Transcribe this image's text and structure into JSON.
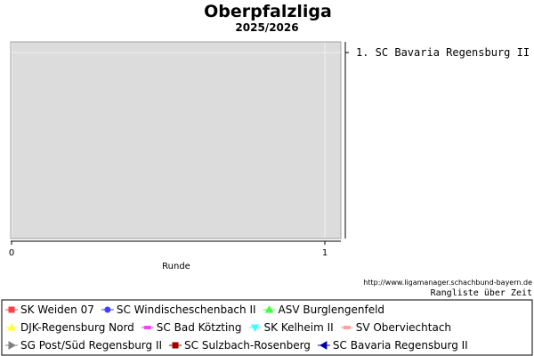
{
  "chart_data": {
    "type": "line",
    "title": "Oberpfalzliga",
    "subtitle": "2025/2026",
    "xlabel": "Runde",
    "ylabel": "",
    "x_ticks": [
      0,
      1
    ],
    "xlim": [
      0,
      1
    ],
    "grid": true,
    "legend_position": "bottom",
    "ranking": [
      {
        "label": "1. SC Bavaria Regensburg II"
      }
    ],
    "series": [
      {
        "name": "SK Weiden 07",
        "color": "#ff4040",
        "marker": "square",
        "values": []
      },
      {
        "name": "SC Windischeschenbach II",
        "color": "#4040ff",
        "marker": "circle",
        "values": []
      },
      {
        "name": "ASV Burglengenfeld",
        "color": "#40ff40",
        "marker": "triangle-up",
        "values": []
      },
      {
        "name": "DJK-Regensburg Nord",
        "color": "#ffff40",
        "marker": "triangle-up",
        "values": []
      },
      {
        "name": "SC Bad Kötzting",
        "color": "#ff40ff",
        "marker": "dash",
        "values": []
      },
      {
        "name": "SK Kelheim II",
        "color": "#40ffff",
        "marker": "triangle-down",
        "values": []
      },
      {
        "name": "SV Oberviechtach",
        "color": "#ffa0a0",
        "marker": "dash",
        "values": []
      },
      {
        "name": "SG Post/Süd Regensburg II",
        "color": "#808080",
        "marker": "triangle-right",
        "values": []
      },
      {
        "name": "SC Sulzbach-Rosenberg",
        "color": "#a00000",
        "marker": "square",
        "values": []
      },
      {
        "name": "SC Bavaria Regensburg II",
        "color": "#0000a0",
        "marker": "triangle-left",
        "values": []
      }
    ],
    "source_url": "http://www.ligamanager.schachbund-bayern.de",
    "footer": "Rangliste über Zeit",
    "colors": {
      "plot_background": "#dcdcdc",
      "grid": "#f0f0f0"
    }
  }
}
